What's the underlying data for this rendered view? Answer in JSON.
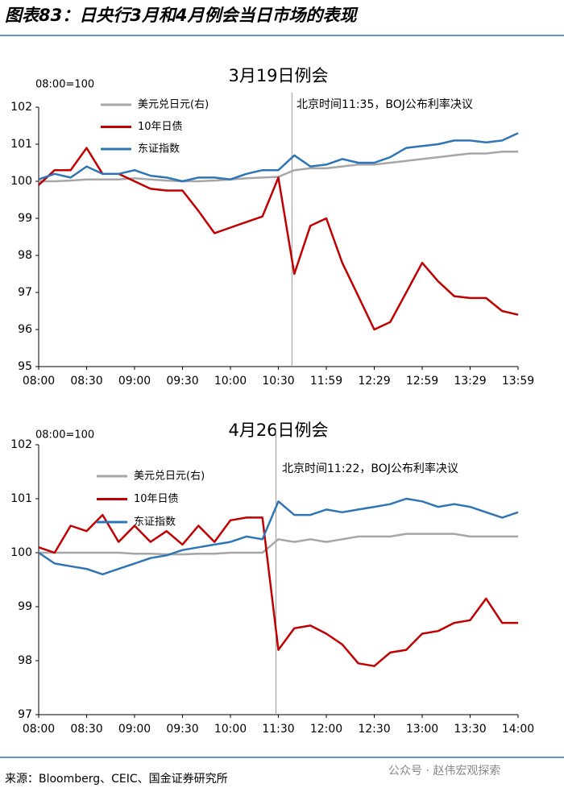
{
  "header": {
    "title": "图表83：日央行3月和4月例会当日市场的表现"
  },
  "chart_data": [
    {
      "type": "line",
      "title": "3月19日例会",
      "y_label": "08:00=100",
      "annotation": "北京时间11:35，BOJ公布利率决议",
      "x": [
        "08:00",
        "08:10",
        "08:20",
        "08:30",
        "08:40",
        "08:50",
        "09:00",
        "09:10",
        "09:20",
        "09:30",
        "09:40",
        "09:50",
        "10:00",
        "10:10",
        "10:20",
        "10:30",
        "11:39",
        "11:49",
        "11:59",
        "12:09",
        "12:19",
        "12:29",
        "12:39",
        "12:49",
        "12:59",
        "13:09",
        "13:19",
        "13:29",
        "13:39",
        "13:49",
        "13:59"
      ],
      "xticks": [
        "08:00",
        "08:30",
        "09:00",
        "09:30",
        "10:00",
        "10:30",
        "11:59",
        "12:29",
        "12:59",
        "13:29",
        "13:59"
      ],
      "ylim": [
        95,
        102
      ],
      "yticks": [
        95,
        96,
        97,
        98,
        99,
        100,
        101,
        102
      ],
      "grid": false,
      "series": [
        {
          "name": "美元兑日元(右)",
          "color": "#a6a6a6",
          "values": [
            100,
            100,
            100.02,
            100.05,
            100.05,
            100.05,
            100.08,
            100.05,
            100.02,
            100,
            100,
            100.02,
            100.05,
            100.08,
            100.1,
            100.12,
            100.3,
            100.35,
            100.35,
            100.4,
            100.45,
            100.45,
            100.5,
            100.55,
            100.6,
            100.65,
            100.7,
            100.75,
            100.75,
            100.8,
            100.8
          ]
        },
        {
          "name": "10年日债",
          "color": "#c00000",
          "values": [
            99.9,
            100.3,
            100.3,
            100.9,
            100.2,
            100.2,
            100,
            99.8,
            99.75,
            99.75,
            99.2,
            98.6,
            98.75,
            98.9,
            99.05,
            100.1,
            97.5,
            98.8,
            99,
            97.8,
            96.9,
            96,
            96.2,
            97,
            97.8,
            97.3,
            96.9,
            96.85,
            96.85,
            96.5,
            96.4
          ]
        },
        {
          "name": "东证指数",
          "color": "#2e75b6",
          "values": [
            100.05,
            100.2,
            100.1,
            100.4,
            100.2,
            100.2,
            100.3,
            100.15,
            100.1,
            100,
            100.1,
            100.1,
            100.05,
            100.2,
            100.3,
            100.3,
            100.7,
            100.4,
            100.45,
            100.6,
            100.5,
            100.5,
            100.65,
            100.9,
            100.95,
            101,
            101.1,
            101.1,
            101.05,
            101.1,
            101.3
          ]
        }
      ]
    },
    {
      "type": "line",
      "title": "4月26日例会",
      "y_label": "08:00=100",
      "annotation": "北京时间11:22，BOJ公布利率决议",
      "x": [
        "08:00",
        "08:10",
        "08:20",
        "08:30",
        "08:40",
        "08:50",
        "09:00",
        "09:10",
        "09:20",
        "09:30",
        "09:40",
        "09:50",
        "10:00",
        "10:10",
        "10:20",
        "11:30",
        "11:40",
        "11:50",
        "12:00",
        "12:10",
        "12:20",
        "12:30",
        "12:40",
        "12:50",
        "13:00",
        "13:10",
        "13:20",
        "13:30",
        "13:40",
        "13:50",
        "14:00"
      ],
      "xticks": [
        "08:00",
        "08:30",
        "09:00",
        "09:30",
        "10:00",
        "11:30",
        "12:00",
        "12:30",
        "13:00",
        "13:30",
        "14:00"
      ],
      "ylim": [
        97,
        102
      ],
      "yticks": [
        97,
        98,
        99,
        100,
        101,
        102
      ],
      "grid": false,
      "series": [
        {
          "name": "美元兑日元(右)",
          "color": "#a6a6a6",
          "values": [
            100,
            100,
            100,
            100,
            100,
            100,
            99.98,
            99.98,
            99.97,
            99.97,
            99.98,
            99.98,
            100,
            100,
            100,
            100.25,
            100.2,
            100.25,
            100.2,
            100.25,
            100.3,
            100.3,
            100.3,
            100.35,
            100.35,
            100.35,
            100.35,
            100.3,
            100.3,
            100.3,
            100.3
          ]
        },
        {
          "name": "10年日债",
          "color": "#c00000",
          "values": [
            100.1,
            100,
            100.5,
            100.4,
            100.7,
            100.2,
            100.5,
            100.2,
            100.4,
            100.15,
            100.5,
            100.2,
            100.6,
            100.65,
            100.65,
            98.2,
            98.6,
            98.65,
            98.5,
            98.3,
            97.95,
            97.9,
            98.15,
            98.2,
            98.5,
            98.55,
            98.7,
            98.75,
            99.15,
            98.7,
            98.7
          ]
        },
        {
          "name": "东证指数",
          "color": "#2e75b6",
          "values": [
            100,
            99.8,
            99.75,
            99.7,
            99.6,
            99.7,
            99.8,
            99.9,
            99.95,
            100.05,
            100.1,
            100.15,
            100.2,
            100.3,
            100.25,
            100.95,
            100.7,
            100.7,
            100.8,
            100.75,
            100.8,
            100.85,
            100.9,
            101,
            100.95,
            100.85,
            100.9,
            100.85,
            100.75,
            100.65,
            100.75
          ]
        }
      ]
    }
  ],
  "source": "来源：Bloomberg、CEIC、国金证券研究所",
  "watermark": "公众号 · 赵伟宏观探索"
}
